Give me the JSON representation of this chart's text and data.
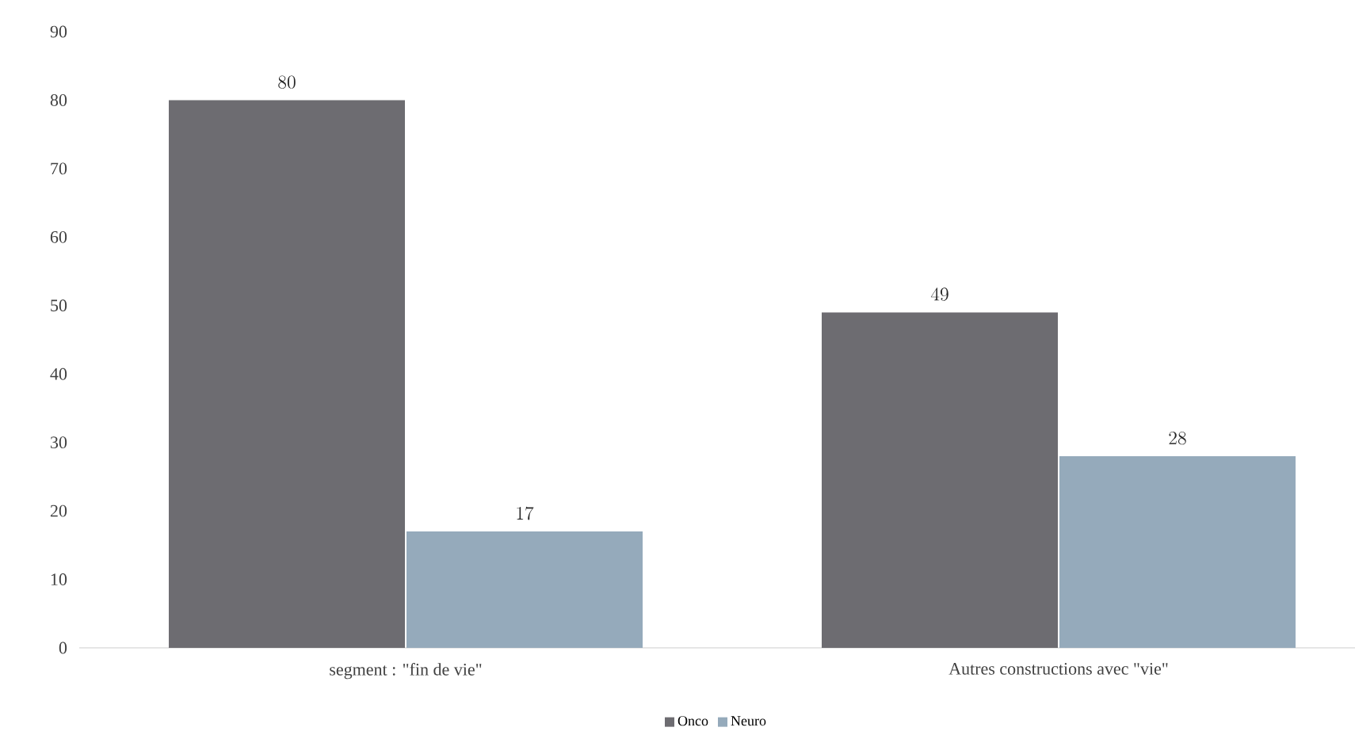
{
  "chart_data": {
    "type": "bar",
    "categories": [
      "segment : \"fin de vie\"",
      "Autres constructions avec \"vie\""
    ],
    "series": [
      {
        "name": "Onco",
        "color": "#6d6c71",
        "values": [
          80,
          49
        ]
      },
      {
        "name": "Neuro",
        "color": "#95aabb",
        "values": [
          17,
          28
        ]
      }
    ],
    "ylim": [
      0,
      90
    ],
    "yticks": [
      0,
      10,
      20,
      30,
      40,
      50,
      60,
      70,
      80,
      90
    ],
    "data_labels": true,
    "grid": false,
    "legend": "bottom"
  }
}
